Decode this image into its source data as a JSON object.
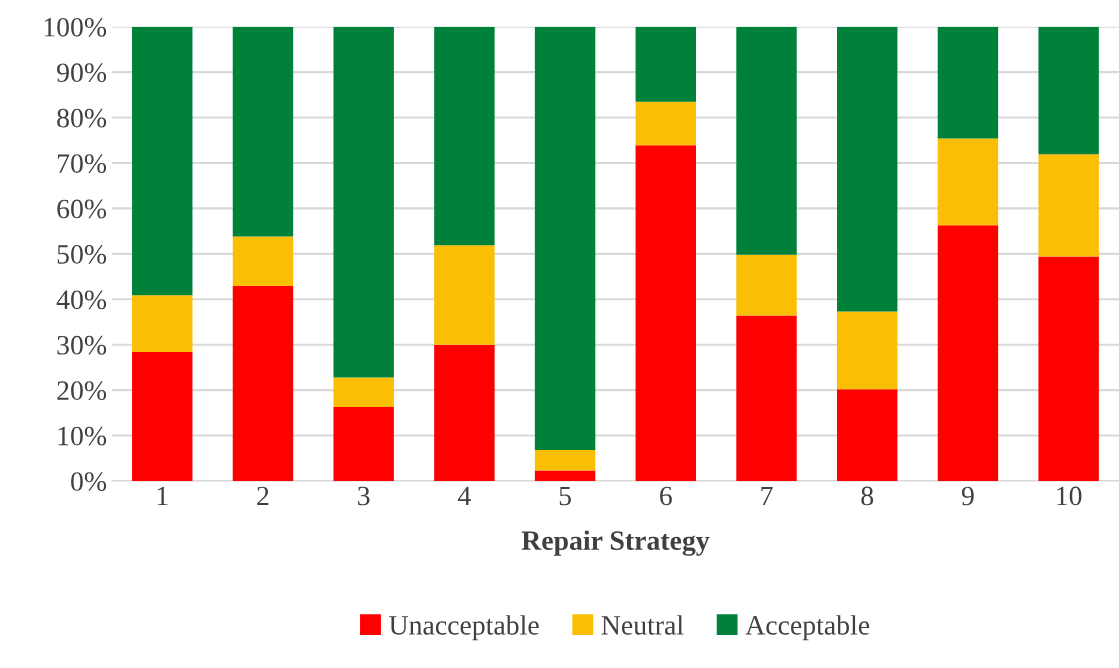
{
  "chart_data": {
    "type": "bar",
    "stacked": true,
    "xlabel": "Repair Strategy",
    "categories": [
      "1",
      "2",
      "3",
      "4",
      "5",
      "6",
      "7",
      "8",
      "9",
      "10"
    ],
    "series": [
      {
        "name": "Unacceptable",
        "color": "#ff0000",
        "values": [
          28.4,
          42.9,
          16.3,
          30.0,
          2.3,
          73.9,
          36.4,
          20.2,
          56.3,
          49.4
        ]
      },
      {
        "name": "Neutral",
        "color": "#fabf05",
        "values": [
          12.5,
          10.9,
          6.5,
          21.9,
          4.5,
          9.6,
          13.4,
          17.1,
          19.1,
          22.5
        ]
      },
      {
        "name": "Acceptable",
        "color": "#00813a",
        "values": [
          59.1,
          46.2,
          77.2,
          48.1,
          93.2,
          16.5,
          50.2,
          62.7,
          24.6,
          28.1
        ]
      }
    ],
    "ylim": [
      0,
      100
    ],
    "yticks": [
      {
        "value": 0,
        "label": "0%"
      },
      {
        "value": 10,
        "label": "10%"
      },
      {
        "value": 20,
        "label": "20%"
      },
      {
        "value": 30,
        "label": "30%"
      },
      {
        "value": 40,
        "label": "40%"
      },
      {
        "value": 50,
        "label": "50%"
      },
      {
        "value": 60,
        "label": "60%"
      },
      {
        "value": 70,
        "label": "70%"
      },
      {
        "value": 80,
        "label": "80%"
      },
      {
        "value": 90,
        "label": "90%"
      },
      {
        "value": 100,
        "label": "100%"
      }
    ],
    "grid": "y",
    "legend": "bottom"
  }
}
